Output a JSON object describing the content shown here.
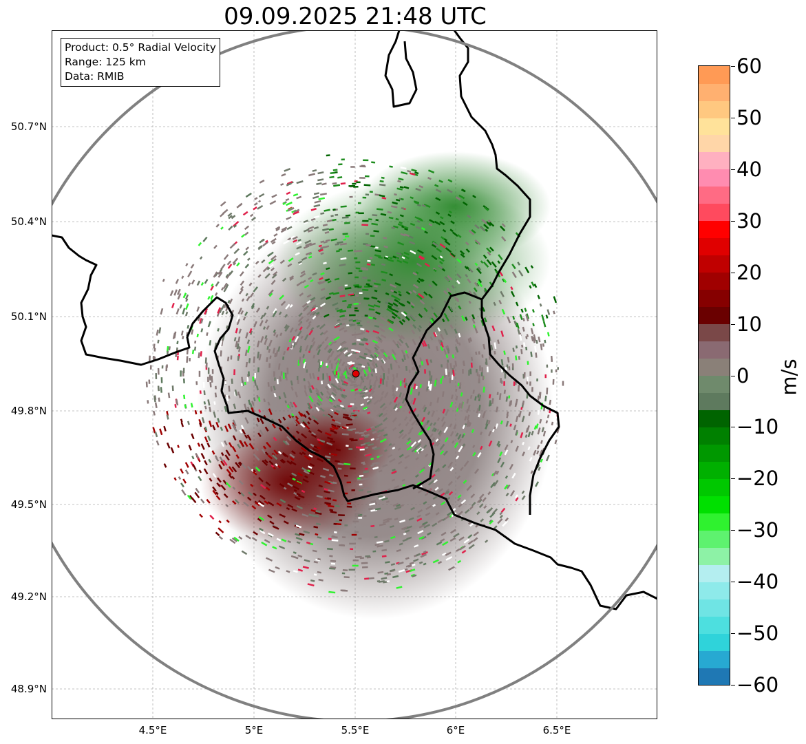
{
  "title": "09.09.2025 21:48 UTC",
  "infobox": {
    "product": "Product: 0.5° Radial Velocity",
    "range": "Range: 125 km",
    "data": "Data: RMIB"
  },
  "lat_ticks": [
    "50.7°N",
    "50.4°N",
    "50.1°N",
    "49.8°N",
    "49.5°N",
    "49.2°N",
    "48.9°N"
  ],
  "lon_ticks": [
    "4.5°E",
    "5°E",
    "5.5°E",
    "6°E",
    "6.5°E"
  ],
  "colorbar": {
    "unit": "m/s",
    "labels": [
      "60",
      "50",
      "40",
      "30",
      "20",
      "10",
      "0",
      "−10",
      "−20",
      "−30",
      "−40",
      "−50",
      "−60"
    ],
    "colors": [
      "#1f78b4",
      "#27a9d2",
      "#2fd3da",
      "#4ddfdf",
      "#6fe4e4",
      "#8eeaea",
      "#b4eef0",
      "#8df2a6",
      "#5ef26f",
      "#2ff22f",
      "#00e000",
      "#00c800",
      "#00b000",
      "#009800",
      "#008000",
      "#006400",
      "#5e7a5e",
      "#6f8a6c",
      "#8a8078",
      "#8a6a72",
      "#7a4848",
      "#6a0000",
      "#860000",
      "#a00000",
      "#c00000",
      "#e00000",
      "#ff0000",
      "#ff4a5e",
      "#ff6b84",
      "#ff8cb0",
      "#ffb0c0",
      "#ffd6a8",
      "#ffe29a",
      "#ffc880",
      "#ffb070",
      "#ff9a55"
    ]
  },
  "radar_site": {
    "lon": 5.5,
    "lat": 49.91,
    "color": "#e00000"
  },
  "map_extent": {
    "lon_min": 4.0,
    "lon_max": 7.0,
    "lat_min": 48.8,
    "lat_max": 51.0
  },
  "colors": {
    "range_ring": "#808080",
    "border": "#000000",
    "grid": "#b0b0b0"
  }
}
